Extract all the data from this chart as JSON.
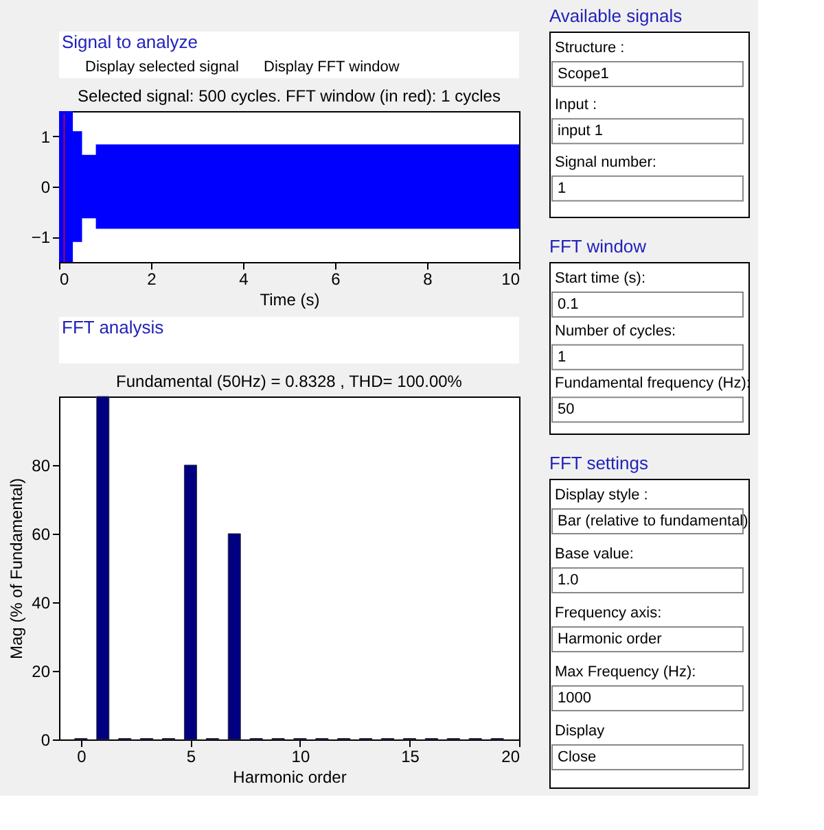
{
  "chart_data": [
    {
      "type": "area",
      "title": "Selected signal: 500 cycles. FFT window (in red): 1 cycles",
      "xlabel": "Time (s)",
      "annotations": [
        "Signal to analyze",
        "Display selected signal",
        "Display FFT window"
      ],
      "series": [
        {
          "type": "area",
          "color": "#0000ff",
          "x": [
            0,
            0.3,
            0.5,
            0.8,
            10
          ],
          "values": [
            1.5,
            1.1,
            0.63,
            0.84,
            0.84
          ]
        },
        {
          "type": "area",
          "color": "#0000ff",
          "x": [
            0,
            0.3,
            0.5,
            0.8,
            10
          ],
          "values": [
            -1.5,
            -1.1,
            -0.63,
            -0.84,
            -0.84
          ]
        }
      ],
      "bands": [
        {
          "axis": "x",
          "from": 0.1,
          "to": 0.12,
          "color": "#ff0000"
        }
      ],
      "xlim": [
        0,
        10
      ],
      "xticks": [
        0,
        2,
        4,
        6,
        8,
        10
      ],
      "ylim": [
        -1.5,
        1.5
      ],
      "yticks": [
        -1,
        0,
        1
      ],
      "grid": false
    },
    {
      "type": "bar",
      "title": "Fundamental (50Hz) = 0.8328 , THD= 100.00%",
      "xlabel": "Harmonic order",
      "ylabel": "Mag (% of Fundamental)",
      "annotations": [
        "FFT analysis"
      ],
      "x": [
        0,
        1,
        2,
        3,
        4,
        5,
        6,
        7,
        8,
        9,
        10,
        11,
        12,
        13,
        14,
        15,
        16,
        17,
        18,
        19
      ],
      "series": [
        {
          "color": "#000080",
          "values": [
            0.3,
            100,
            0.3,
            0.3,
            0.3,
            80,
            0.3,
            60,
            0.3,
            0.3,
            0.3,
            0.3,
            0.3,
            0.3,
            0.3,
            0.3,
            0.3,
            0.3,
            0.3,
            0.3
          ]
        }
      ],
      "xlim": [
        -1,
        20
      ],
      "xticks": [
        0,
        5,
        10,
        15,
        20
      ],
      "ylim": [
        0,
        100
      ],
      "yticks": [
        0,
        20,
        40,
        60,
        80
      ],
      "grid": false
    },
    {
      "type": "other",
      "title": "Available signals",
      "annotations": [
        "Structure :",
        "Scope1",
        "Input :",
        "input 1",
        "Signal number:",
        "1"
      ]
    },
    {
      "type": "other",
      "title": "FFT window",
      "annotations": [
        "Start time (s):",
        "0.1",
        "Number of cycles:",
        "1",
        "Fundamental frequency (Hz):",
        "50"
      ]
    },
    {
      "type": "other",
      "title": "FFT settings",
      "annotations": [
        "Display style :",
        "Bar (relative to fundamental)",
        "Base value:",
        "1.0",
        "Frequency axis:",
        "Harmonic order",
        "Max Frequency (Hz):",
        "1000",
        "Display",
        "Close"
      ]
    }
  ]
}
